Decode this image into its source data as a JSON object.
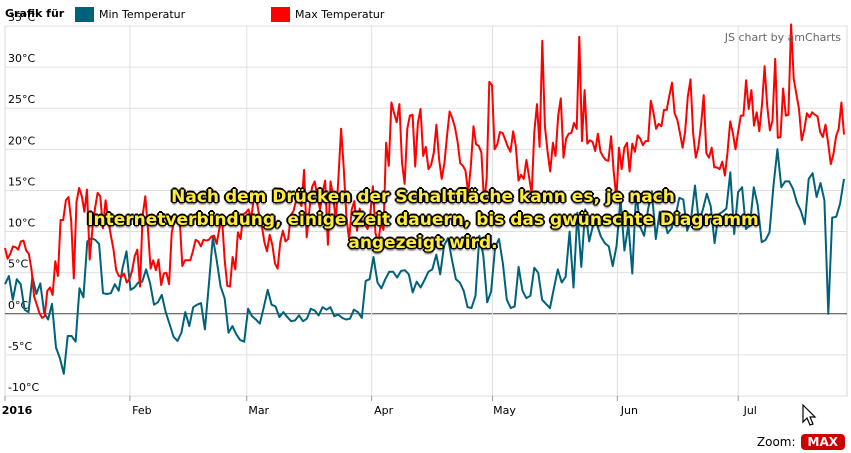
{
  "legend": {
    "title": "Grafik für",
    "items": [
      {
        "label": "Min Temperatur",
        "color": "#00627a"
      },
      {
        "label": "Max Temperatur",
        "color": "#ff0000"
      }
    ]
  },
  "credit": "JS chart by amCharts",
  "overlay_lines": [
    "Nach dem Drücken der Schaltfläche kann es, je nach",
    "Internetverbindung, einige Zeit dauern, bis das gwünschte Diagramm",
    "angezeigt wird."
  ],
  "zoom": {
    "label": "Zoom:",
    "button": "MAX"
  },
  "colors": {
    "min": "#00627a",
    "max": "#ff0000",
    "grid": "#e0e0e0",
    "zero_line": "#444444",
    "min_below_zero": "#1a9fd8"
  },
  "chart_data": {
    "type": "line",
    "x_axis": {
      "start": "2016-01-01",
      "end": "2016-07-28",
      "tick_labels": [
        {
          "date": "2016-01-01",
          "label": "2016",
          "bold": true
        },
        {
          "date": "2016-02-01",
          "label": "Feb"
        },
        {
          "date": "2016-03-01",
          "label": "Mar"
        },
        {
          "date": "2016-04-01",
          "label": "Apr"
        },
        {
          "date": "2016-05-01",
          "label": "May"
        },
        {
          "date": "2016-06-01",
          "label": "Jun"
        },
        {
          "date": "2016-07-01",
          "label": "Jul"
        }
      ]
    },
    "y_axis": {
      "min": -10,
      "max": 35,
      "ticks": [
        35,
        30,
        25,
        20,
        15,
        10,
        5,
        0,
        -5,
        -10
      ],
      "tick_labels": [
        "35°C",
        "30°C",
        "25°C",
        "20°C",
        "15°C",
        "10°C",
        "5°C",
        "0°C",
        "-5°C",
        "-10°C"
      ]
    },
    "grid": true,
    "legend_position": "top-left",
    "series": [
      {
        "name": "Min Temperatur",
        "color": "#00627a",
        "values": [
          3.6,
          4.6,
          1.7,
          4.2,
          3.6,
          0.5,
          0.2,
          4.5,
          2.4,
          3.7,
          0.1,
          -0.7,
          1.2,
          -4.1,
          -5.4,
          -7.3,
          -2.7,
          -2.7,
          -3.4,
          3.1,
          2.0,
          8.8,
          9.2,
          9.0,
          8.5,
          2.5,
          2.4,
          2.5,
          3.6,
          2.8,
          5.6,
          7.6,
          2.9,
          3.2,
          3.8,
          3.9,
          5.4,
          3.7,
          1.1,
          1.4,
          2.3,
          0.2,
          -1.3,
          -2.8,
          -3.3,
          -2.3,
          0.2,
          -1.5,
          0.8,
          1.1,
          1.3,
          -1.9,
          3.6,
          9.3,
          6.5,
          3.3,
          1.9,
          -2.3,
          -1.5,
          -2.5,
          -3.2,
          -3.4,
          0.6,
          -0.3,
          -0.7,
          -1.2,
          0.8,
          2.9,
          1.1,
          0.9,
          -0.4,
          0.2,
          -0.4,
          -0.9,
          -0.8,
          -0.2,
          -0.9,
          -0.6,
          0.6,
          0.4,
          -0.2,
          0.8,
          0.5,
          0.8,
          -0.3,
          -0.1,
          -0.5,
          -0.7,
          -0.6,
          0.5,
          0.2,
          -0.5,
          4.0,
          4.2,
          6.9,
          3.8,
          3.1,
          4.2,
          5.1,
          5.1,
          4.4,
          5.2,
          5.3,
          4.8,
          2.6,
          3.9,
          3.2,
          4.1,
          5.1,
          5.4,
          7.2,
          4.8,
          8.3,
          9.2,
          6.6,
          4.2,
          3.8,
          2.8,
          0.8,
          0.7,
          2.2,
          9.5,
          7.1,
          1.4,
          2.7,
          8.1,
          9.1,
          6.1,
          1.7,
          0.7,
          0.9,
          5.7,
          2.8,
          1.9,
          2.2,
          5.6,
          5.0,
          1.7,
          1.2,
          0.7,
          3.1,
          5.4,
          3.8,
          4.5,
          10.0,
          3.2,
          12.3,
          5.7,
          12.7,
          8.8,
          10.8,
          10.8,
          9.4,
          8.6,
          8.2,
          5.8,
          8.3,
          14.0,
          7.7,
          10.8,
          4.9,
          14.9,
          10.6,
          9.5,
          12.7,
          14.9,
          9.1,
          12.4,
          11.8,
          9.8,
          10.4,
          11.8,
          14.1,
          13.9,
          10.1,
          11.6,
          15.6,
          11.1,
          12.7,
          14.6,
          13.1,
          8.6,
          12.1,
          12.4,
          12.8,
          17.2,
          9.7,
          14.8,
          15.4,
          10.3,
          10.8,
          15.4,
          13.2,
          8.7,
          9.0,
          9.9,
          15.5,
          20.0,
          15.4,
          16.1,
          16.1,
          15.2,
          13.5,
          12.5,
          10.9,
          16.4,
          17.1,
          14.2,
          15.9,
          13.8,
          0.0,
          11.7,
          11.8,
          13.4,
          16.4
        ]
      },
      {
        "name": "Max Temperatur",
        "color": "#ff0000",
        "values": [
          8.0,
          6.7,
          7.3,
          8.2,
          8.1,
          7.8,
          8.8,
          8.9,
          7.7,
          7.3,
          5.4,
          2.1,
          1.1,
          0.1,
          -0.5,
          -0.3,
          2.8,
          3.2,
          2.3,
          6.4,
          4.6,
          11.4,
          11.4,
          13.8,
          14.2,
          11.3,
          4.3,
          13.6,
          15.3,
          14.3,
          12.4,
          15.1,
          6.6,
          10.2,
          12.8,
          14.7,
          14.3,
          10.4,
          13.8,
          11.4,
          9.5,
          7.8,
          5.3,
          4.6,
          4.5,
          4.9,
          3.8,
          4.2,
          5.2,
          7.0,
          7.8,
          3.3,
          11.9,
          14.3,
          10.3,
          5.5,
          6.5,
          5.3,
          6.6,
          3.5,
          4.9,
          5.0,
          3.6,
          9.8,
          11.5,
          11.2,
          11.5,
          5.8,
          6.5,
          6.5,
          6.5,
          7.6,
          9.0,
          8.8,
          8.2,
          9.0,
          8.9,
          9.0,
          9.4,
          9.5,
          8.5,
          10.4,
          11.6,
          6.5,
          3.4,
          3.3,
          6.9,
          5.4,
          9.9,
          9.1,
          12.1,
          12.3,
          12.7,
          11.6,
          14.0,
          14.0,
          12.0,
          10.8,
          8.7,
          7.6,
          9.6,
          8.4,
          6.1,
          5.5,
          8.7,
          10.1,
          8.8,
          9.1,
          12.0,
          12.5,
          13.8,
          14.1,
          13.1,
          17.5,
          9.3,
          12.6,
          15.4,
          16.1,
          14.4,
          12.7,
          14.8,
          16.2,
          8.4,
          16.1,
          14.3,
          11.2,
          16.7,
          22.5,
          17.6,
          11.8,
          9.0,
          12.7,
          13.7,
          10.1,
          12.8,
          10.7,
          10.8,
          10.3,
          12.0,
          15.5,
          9.8,
          8.6,
          11.0,
          10.2,
          20.8,
          18.0,
          25.7,
          24.4,
          23.3,
          25.5,
          18.4,
          15.8,
          22.5,
          24.1,
          24.2,
          17.9,
          23.2,
          24.9,
          19.2,
          20.3,
          17.6,
          18.1,
          19.6,
          23.0,
          18.8,
          16.4,
          18.3,
          21.6,
          24.6,
          23.8,
          22.7,
          20.9,
          18.3,
          18.0,
          17.4,
          14.7,
          17.9,
          22.8,
          20.6,
          20.4,
          19.6,
          13.4,
          16.5,
          28.2,
          27.8,
          20.0,
          20.6,
          22.1,
          22.0,
          21.2,
          20.3,
          19.7,
          22.2,
          20.4,
          16.2,
          16.9,
          16.4,
          18.7,
          16.7,
          14.6,
          22.1,
          25.5,
          20.3,
          33.2,
          22.8,
          19.7,
          17.3,
          20.8,
          19.2,
          24.1,
          26.2,
          19.0,
          21.3,
          21.9,
          22.0,
          23.2,
          22.5,
          33.7,
          21.0,
          27.2,
          20.7,
          21.1,
          20.9,
          19.8,
          21.9,
          19.7,
          19.1,
          18.7,
          18.6,
          21.6,
          17.3,
          14.0,
          20.2,
          17.6,
          20.2,
          20.8,
          17.3,
          20.7,
          19.7,
          21.7,
          21.3,
          20.5,
          21.0,
          21.0,
          25.9,
          24.5,
          22.5,
          23.1,
          22.8,
          24.8,
          24.8,
          26.5,
          28.1,
          24.4,
          23.6,
          22.0,
          20.2,
          22.2,
          26.4,
          28.5,
          22.0,
          19.0,
          20.3,
          23.0,
          26.6,
          19.5,
          19.0,
          20.2,
          17.8,
          17.8,
          17.6,
          18.5,
          16.8,
          19.6,
          23.4,
          22.0,
          20.0,
          22.1,
          24.1,
          24.1,
          28.4,
          24.9,
          27.2,
          22.9,
          24.5,
          22.2,
          25.4,
          30.1,
          25.3,
          22.3,
          23.5,
          31.0,
          21.4,
          21.5,
          27.4,
          24.1,
          24.2,
          35.2,
          28.6,
          26.7,
          24.9,
          21.1,
          22.4,
          24.4,
          23.9,
          24.5,
          24.2,
          24.0,
          22.1,
          21.5,
          23.0,
          20.8,
          18.2,
          19.4,
          21.6,
          22.5,
          25.7,
          21.8
        ]
      }
    ]
  }
}
